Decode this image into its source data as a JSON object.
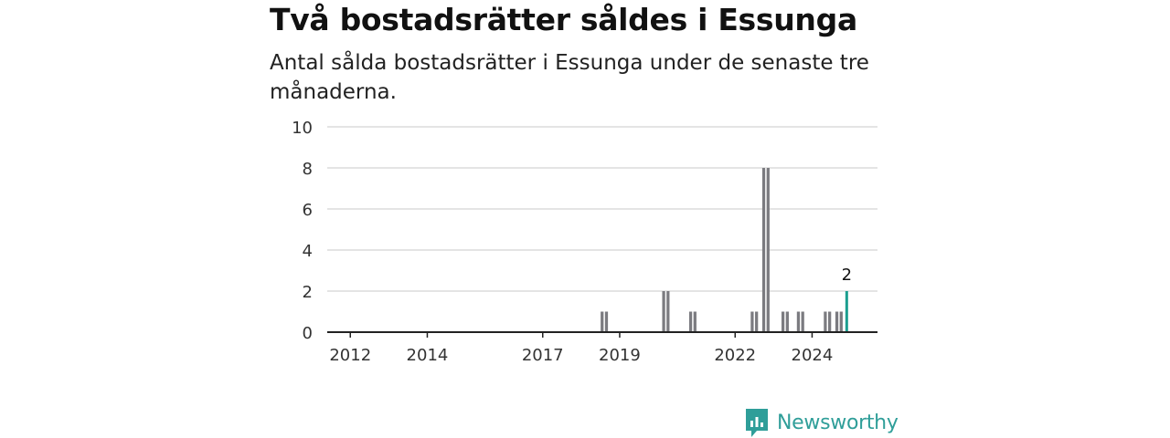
{
  "header": {
    "title": "Två bostadsrätter såldes i Essunga",
    "subtitle": "Antal sålda bostadsrätter i Essunga under de senaste tre månaderna."
  },
  "brand": {
    "name": "Newsworthy",
    "icon": "newsworthy-logo-icon",
    "color": "#2f9e99"
  },
  "chart_data": {
    "type": "bar",
    "title": "Två bostadsrätter såldes i Essunga",
    "subtitle": "Antal sålda bostadsrätter i Essunga under de senaste tre månaderna.",
    "xlabel": "",
    "ylabel": "",
    "ylim": [
      0,
      10
    ],
    "yticks": [
      0,
      2,
      4,
      6,
      8,
      10
    ],
    "xlim": [
      2011.4,
      2025.7
    ],
    "xticks": [
      {
        "label": "2012",
        "value": 2012
      },
      {
        "label": "2014",
        "value": 2014
      },
      {
        "label": "2017",
        "value": 2017
      },
      {
        "label": "2019",
        "value": 2019
      },
      {
        "label": "2022",
        "value": 2022
      },
      {
        "label": "2024",
        "value": 2024
      }
    ],
    "grid": true,
    "colors": {
      "bar": "#7b7b80",
      "highlight": "#1b9e8f"
    },
    "points": [
      {
        "x": 2018.6,
        "value": 1
      },
      {
        "x": 2020.2,
        "value": 2
      },
      {
        "x": 2020.9,
        "value": 1
      },
      {
        "x": 2022.5,
        "value": 1
      },
      {
        "x": 2022.8,
        "value": 8
      },
      {
        "x": 2023.3,
        "value": 1
      },
      {
        "x": 2023.7,
        "value": 1
      },
      {
        "x": 2024.4,
        "value": 1
      },
      {
        "x": 2024.7,
        "value": 1
      },
      {
        "x": 2024.9,
        "value": 2,
        "highlight": true,
        "label": "2"
      }
    ]
  }
}
